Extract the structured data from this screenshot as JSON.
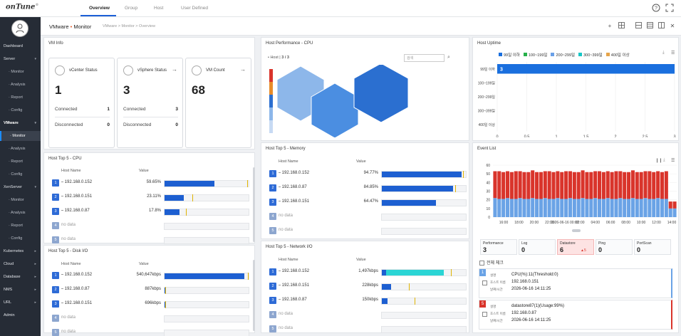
{
  "app": {
    "logo": "onTune",
    "logo_mark": "®"
  },
  "top_tabs": [
    "Overview",
    "Group",
    "Host",
    "User Defined"
  ],
  "sidebar": {
    "items": [
      {
        "label": "Dashboard",
        "type": "top"
      },
      {
        "label": "Server",
        "type": "group",
        "caret": "▾"
      },
      {
        "label": "Monitor",
        "type": "sub"
      },
      {
        "label": "Analysis",
        "type": "sub"
      },
      {
        "label": "Report",
        "type": "sub"
      },
      {
        "label": "Config",
        "type": "sub"
      },
      {
        "label": "VMware",
        "type": "group-active",
        "caret": "▾"
      },
      {
        "label": "Monitor",
        "type": "sub-active"
      },
      {
        "label": "Analysis",
        "type": "sub"
      },
      {
        "label": "Report",
        "type": "sub"
      },
      {
        "label": "Config",
        "type": "sub"
      },
      {
        "label": "XenServer",
        "type": "group",
        "caret": "▾"
      },
      {
        "label": "Monitor",
        "type": "sub"
      },
      {
        "label": "Analysis",
        "type": "sub"
      },
      {
        "label": "Report",
        "type": "sub"
      },
      {
        "label": "Config",
        "type": "sub"
      },
      {
        "label": "Kubernetes",
        "type": "group",
        "caret": "▸"
      },
      {
        "label": "Cloud",
        "type": "group",
        "caret": "▸"
      },
      {
        "label": "Database",
        "type": "group",
        "caret": "▸"
      },
      {
        "label": "NMS",
        "type": "group",
        "caret": "▸"
      },
      {
        "label": "URL",
        "type": "group",
        "caret": "▸"
      },
      {
        "label": "Admin",
        "type": "top"
      }
    ]
  },
  "page_header": {
    "title_a": "VMware",
    "title_dot": "•",
    "title_b": "Monitor",
    "breadcrumb": "VMware > Monitor > Overview"
  },
  "vm_info": {
    "title": "VM Info",
    "cards": [
      {
        "label": "vCenter Status",
        "value": "1",
        "row1_label": "Connected",
        "row1_value": "1",
        "row2_label": "Disconnected",
        "row2_value": "0"
      },
      {
        "label": "vSphere Status",
        "value": "3",
        "row1_label": "Connected",
        "row1_value": "3",
        "row2_label": "Disconnected",
        "row2_value": "0"
      },
      {
        "label": "VM Count",
        "value": "68"
      }
    ]
  },
  "host_cpu_perf": {
    "title": "Host Performance - CPU",
    "host_label": "• Host",
    "host_count": "3 / 3",
    "search_placeholder": "검색",
    "strip_colors": [
      "#d9342b",
      "#e88c2a",
      "#2b6fd0",
      "#8db7ea",
      "#c7daf3"
    ]
  },
  "host_uptime": {
    "title": "Host Uptime",
    "legend": [
      {
        "label": "99일 이하",
        "color": "#1a6fde"
      },
      {
        "label": "100~199일",
        "color": "#27b04a"
      },
      {
        "label": "200~299일",
        "color": "#6aa0e8"
      },
      {
        "label": "300~399일",
        "color": "#17c7c7"
      },
      {
        "label": "400일 이상",
        "color": "#e6a44a"
      }
    ],
    "categories": [
      "99일 이하",
      "100~199일",
      "200~299일",
      "300~399일",
      "400일 이상"
    ],
    "values": [
      3,
      0,
      0,
      0,
      0
    ],
    "bar_label": "3",
    "x_ticks": [
      "0",
      "0.5",
      "1",
      "1.5",
      "2",
      "2.5",
      "3"
    ],
    "x_max": 3
  },
  "top5_cpu": {
    "title": "Host Top 5 - CPU",
    "col_host": "Host Name",
    "col_value": "Value",
    "rows": [
      {
        "rank": "1",
        "host": "192.168.0.152",
        "value": "59.65%",
        "pct": 0.5965,
        "mark": 0.98
      },
      {
        "rank": "2",
        "host": "192.168.0.151",
        "value": "23.11%",
        "pct": 0.2311,
        "mark": 0.33
      },
      {
        "rank": "3",
        "host": "192.168.0.87",
        "value": "17.8%",
        "pct": 0.178,
        "mark": 0.25
      },
      {
        "rank": "4",
        "host": "no data",
        "value": "",
        "pct": 0,
        "mark": null
      },
      {
        "rank": "5",
        "host": "no data",
        "value": "",
        "pct": 0,
        "mark": null
      }
    ]
  },
  "top5_memory": {
    "title": "Host Top 5 - Memory",
    "col_host": "Host Name",
    "col_value": "Value",
    "rows": [
      {
        "rank": "1",
        "host": "192.168.0.152",
        "value": "94.77%",
        "pct": 0.9477,
        "mark": 0.97
      },
      {
        "rank": "2",
        "host": "192.168.0.87",
        "value": "84.85%",
        "pct": 0.8485,
        "mark": 0.87
      },
      {
        "rank": "3",
        "host": "192.168.0.151",
        "value": "64.47%",
        "pct": 0.6447,
        "mark": null
      },
      {
        "rank": "4",
        "host": "no data",
        "value": "",
        "pct": 0,
        "mark": null
      },
      {
        "rank": "5",
        "host": "no data",
        "value": "",
        "pct": 0,
        "mark": null
      }
    ]
  },
  "top5_disk": {
    "title": "Host Top 5 - Disk I/O",
    "col_host": "Host Name",
    "col_value": "Value",
    "rows": [
      {
        "rank": "1",
        "host": "192.168.0.152",
        "value": "540,647kbps",
        "pct": 0.95,
        "mark": 0.99
      },
      {
        "rank": "2",
        "host": "192.168.0.87",
        "value": "887kbps",
        "pct": 0.01,
        "mark": 0.01
      },
      {
        "rank": "3",
        "host": "192.168.0.151",
        "value": "696kbps",
        "pct": 0.01,
        "mark": 0.01
      },
      {
        "rank": "4",
        "host": "no data",
        "value": "",
        "pct": 0,
        "mark": null
      },
      {
        "rank": "5",
        "host": "no data",
        "value": "",
        "pct": 0,
        "mark": null
      }
    ]
  },
  "top5_net": {
    "title": "Host Top 5 - Network I/O",
    "col_host": "Host Name",
    "col_value": "Value",
    "rows": [
      {
        "rank": "1",
        "host": "192.168.0.152",
        "value": "1,497kbps",
        "pct": 0.74,
        "mark": 0.82,
        "color": "#2bd5d5"
      },
      {
        "rank": "2",
        "host": "192.168.0.151",
        "value": "228kbps",
        "pct": 0.11,
        "mark": 0.32
      },
      {
        "rank": "3",
        "host": "192.168.0.87",
        "value": "150kbps",
        "pct": 0.07,
        "mark": 0.39
      },
      {
        "rank": "4",
        "host": "no data",
        "value": "",
        "pct": 0,
        "mark": null
      },
      {
        "rank": "5",
        "host": "no data",
        "value": "",
        "pct": 0,
        "mark": null
      }
    ]
  },
  "event_list": {
    "title": "Event List",
    "y_ticks": [
      "0",
      "10",
      "20",
      "30",
      "40",
      "50",
      "60"
    ],
    "x_ticks": [
      "16:00",
      "18:00",
      "20:00",
      "22:00",
      "2026-06-16 00:00",
      "02:00",
      "04:00",
      "06:00",
      "08:00",
      "10:00",
      "12:00",
      "14:00"
    ],
    "colors": {
      "red": "#d9342b",
      "blue": "#6aa3e6"
    },
    "cards": [
      {
        "label": "Performance",
        "value": "3"
      },
      {
        "label": "Log",
        "value": "0"
      },
      {
        "label": "Datastore",
        "value": "6",
        "badge": "▲5"
      },
      {
        "label": "Ping",
        "value": "0"
      },
      {
        "label": "PortScan",
        "value": "0"
      }
    ],
    "check_all": "전체 체크",
    "items": [
      {
        "num": "1",
        "color": "#6aa3e6",
        "l1": "설명",
        "l2": "호스트 이름",
        "l3": "날짜/시간",
        "t1": "CPU(%):11(Threshold:0)",
        "t2": "192.168.0.151",
        "t3": "2026-06-16 14:11:25"
      },
      {
        "num": "5",
        "color": "#d9342b",
        "l1": "설명",
        "l2": "호스트 이름",
        "l3": "날짜/시간",
        "t1": "datastore87(1)(Usage:99%)",
        "t2": "192.168.0.87",
        "t3": "2026-06-16 14:11:25"
      }
    ]
  }
}
